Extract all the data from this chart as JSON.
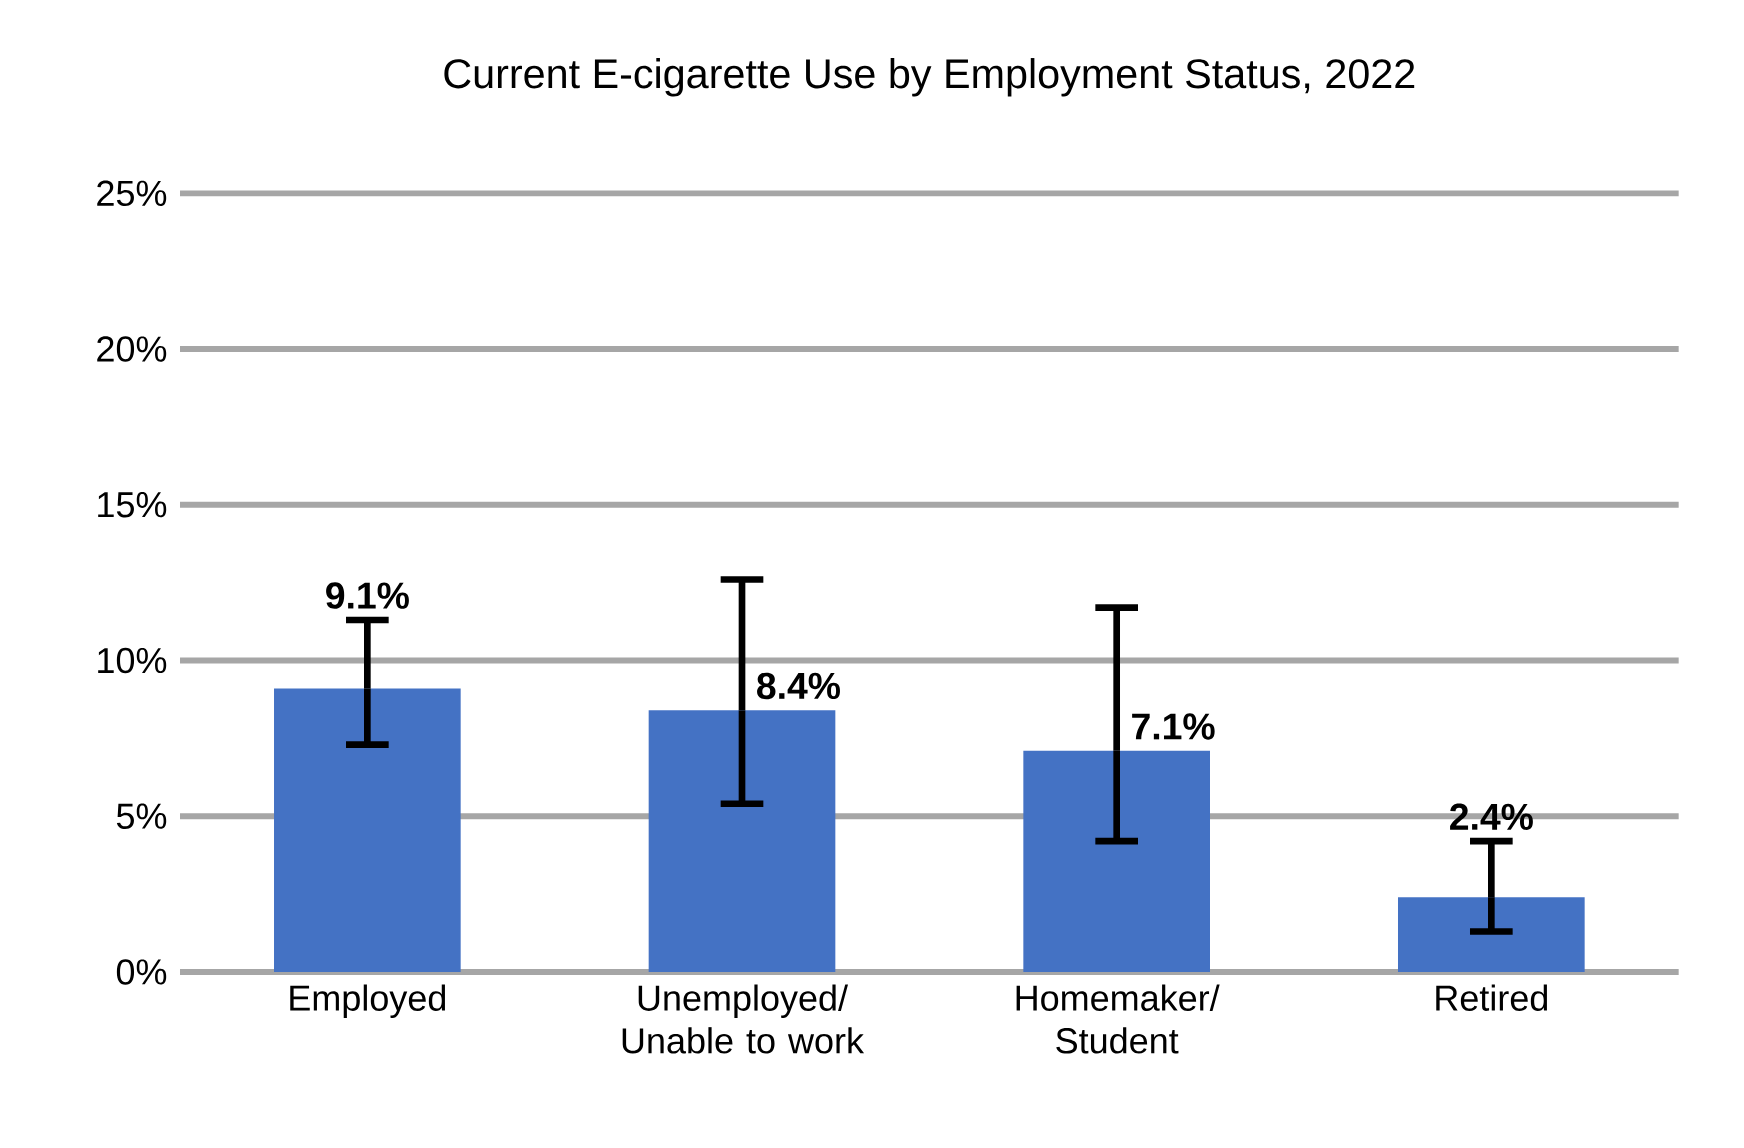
{
  "chart_data": {
    "type": "bar",
    "title": "Current E-cigarette Use by Employment Status, 2022",
    "categories": [
      "Employed",
      "Unemployed/ Unable to work",
      "Homemaker/ Student",
      "Retired"
    ],
    "values": [
      9.1,
      8.4,
      7.1,
      2.4
    ],
    "errors": [
      [
        7.3,
        11.3
      ],
      [
        5.4,
        12.6
      ],
      [
        4.2,
        11.7
      ],
      [
        1.3,
        4.2
      ]
    ],
    "value_labels": [
      "9.1%",
      "8.4%",
      "7.1%",
      "2.4%"
    ],
    "color": "#4472c4",
    "ylim": [
      0,
      25
    ],
    "yticks": [
      {
        "value": 0,
        "label": "0%"
      },
      {
        "value": 5,
        "label": "5%"
      },
      {
        "value": 10,
        "label": "10%"
      },
      {
        "value": 15,
        "label": "15%"
      },
      {
        "value": 20,
        "label": "20%"
      },
      {
        "value": 25,
        "label": "25%"
      }
    ],
    "grid": "y"
  }
}
